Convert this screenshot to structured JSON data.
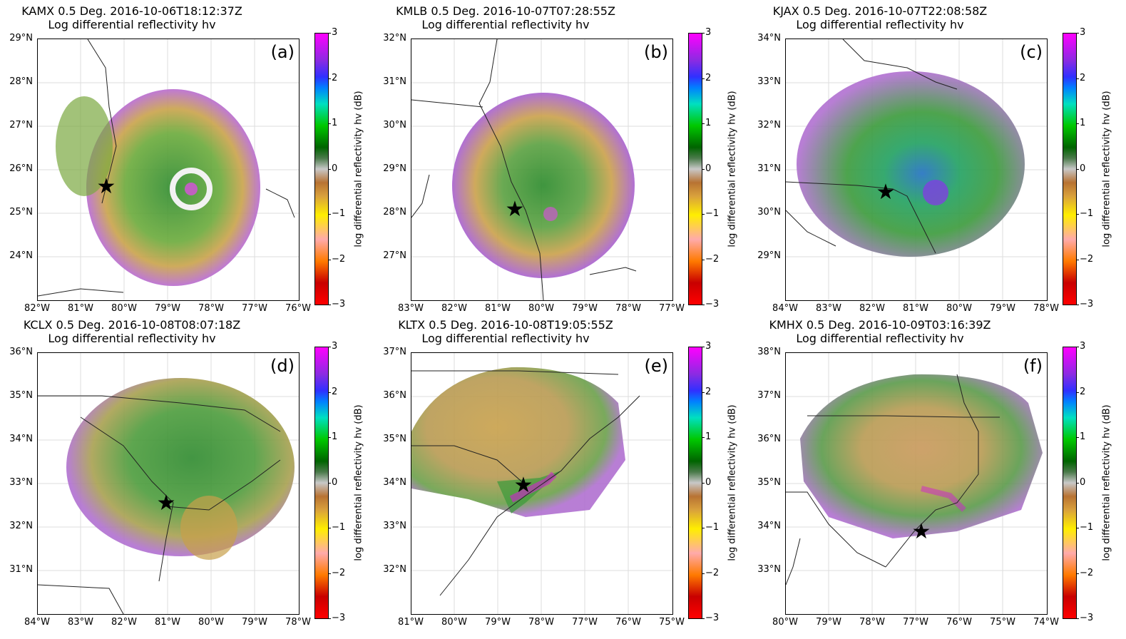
{
  "colorbar": {
    "label": "log differential reflectivity hv (dB)",
    "ticks": [
      "3",
      "2",
      "1",
      "0",
      "−1",
      "−2",
      "−3"
    ]
  },
  "panels": [
    {
      "title": "KAMX 0.5 Deg. 2016-10-06T18:12:37Z",
      "subtitle": "Log differential reflectivity hv",
      "letter": "(a)",
      "lat_labels": [
        "29°N",
        "28°N",
        "27°N",
        "26°N",
        "25°N",
        "24°N"
      ],
      "lon_labels": [
        "82°W",
        "81°W",
        "80°W",
        "79°W",
        "78°W",
        "77°W",
        "76°W"
      ]
    },
    {
      "title": "KMLB 0.5 Deg. 2016-10-07T07:28:55Z",
      "subtitle": "Log differential reflectivity hv",
      "letter": "(b)",
      "lat_labels": [
        "32°N",
        "31°N",
        "30°N",
        "29°N",
        "28°N",
        "27°N"
      ],
      "lon_labels": [
        "83°W",
        "82°W",
        "81°W",
        "80°W",
        "79°W",
        "78°W",
        "77°W"
      ]
    },
    {
      "title": "KJAX 0.5 Deg. 2016-10-07T22:08:58Z",
      "subtitle": "Log differential reflectivity hv",
      "letter": "(c)",
      "lat_labels": [
        "34°N",
        "33°N",
        "32°N",
        "31°N",
        "30°N",
        "29°N"
      ],
      "lon_labels": [
        "84°W",
        "83°W",
        "82°W",
        "81°W",
        "80°W",
        "79°W",
        "78°W"
      ]
    },
    {
      "title": "KCLX 0.5 Deg. 2016-10-08T08:07:18Z",
      "subtitle": "Log differential reflectivity hv",
      "letter": "(d)",
      "lat_labels": [
        "36°N",
        "35°N",
        "34°N",
        "33°N",
        "32°N",
        "31°N"
      ],
      "lon_labels": [
        "84°W",
        "83°W",
        "82°W",
        "81°W",
        "80°W",
        "79°W",
        "78°W"
      ]
    },
    {
      "title": "KLTX 0.5 Deg. 2016-10-08T19:05:55Z",
      "subtitle": "Log differential reflectivity hv",
      "letter": "(e)",
      "lat_labels": [
        "37°N",
        "36°N",
        "35°N",
        "34°N",
        "33°N",
        "32°N"
      ],
      "lon_labels": [
        "81°W",
        "80°W",
        "79°W",
        "78°W",
        "77°W",
        "76°W",
        "75°W"
      ]
    },
    {
      "title": "KMHX 0.5 Deg. 2016-10-09T03:16:39Z",
      "subtitle": "Log differential reflectivity hv",
      "letter": "(f)",
      "lat_labels": [
        "38°N",
        "37°N",
        "36°N",
        "35°N",
        "34°N",
        "33°N"
      ],
      "lon_labels": [
        "80°W",
        "79°W",
        "78°W",
        "77°W",
        "76°W",
        "75°W",
        "74°W"
      ]
    }
  ]
}
